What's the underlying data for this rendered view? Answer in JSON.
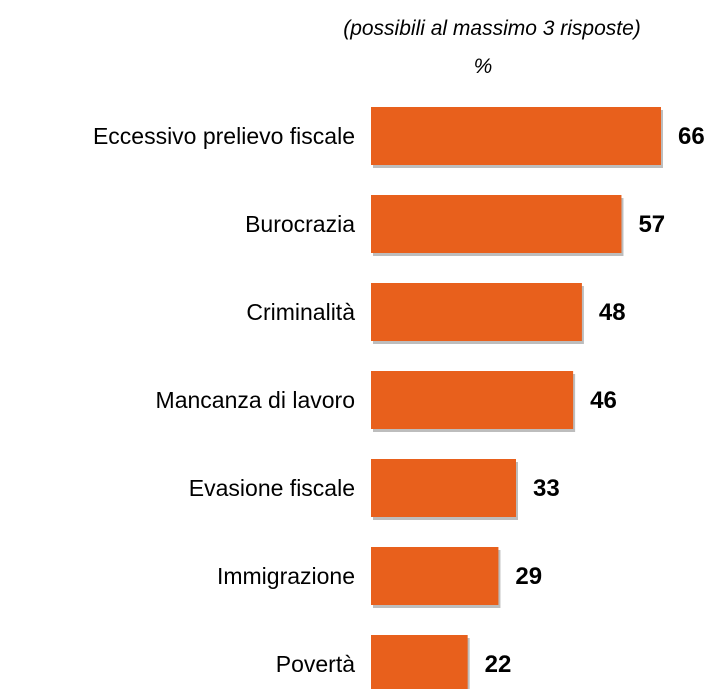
{
  "chart_data": {
    "type": "bar",
    "orientation": "horizontal",
    "subtitle": "(possibili al massimo 3 risposte)",
    "unit": "%",
    "categories": [
      "Eccessivo prelievo fiscale",
      "Burocrazia",
      "Criminalità",
      "Mancanza di lavoro",
      "Evasione fiscale",
      "Immigrazione",
      "Povertà"
    ],
    "values": [
      66,
      57,
      48,
      46,
      33,
      29,
      22
    ],
    "data_labels": [
      "66",
      "57",
      "48",
      "46",
      "33",
      "29",
      "22"
    ],
    "xlim": [
      0,
      66
    ],
    "grid": false,
    "legend": "none",
    "colors": {
      "bar": "#E8601C",
      "bar_shadow": "#BDBDBD",
      "text": "#000000"
    }
  }
}
